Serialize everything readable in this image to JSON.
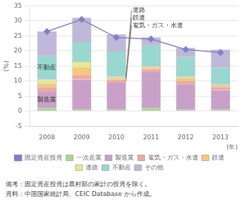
{
  "chart_data": {
    "type": "bar",
    "stacked": true,
    "categories": [
      "2008",
      "2009",
      "2010",
      "2011",
      "2012",
      "2013"
    ],
    "series": [
      {
        "name": "一次産業",
        "color": "#a8d890",
        "values": [
          1.0,
          0.5,
          0.5,
          1.0,
          0.5,
          0.5
        ]
      },
      {
        "name": "製造業",
        "color": "#c8a0c8",
        "values": [
          5.5,
          10.0,
          9.0,
          12.0,
          8.5,
          6.5
        ]
      },
      {
        "name": "電気・ガス・水道",
        "color": "#f0a8a0",
        "values": [
          1.5,
          1.5,
          1.0,
          1.0,
          1.0,
          1.0
        ]
      },
      {
        "name": "鉄道",
        "color": "#f5c87a",
        "values": [
          1.0,
          2.5,
          0.5,
          0.5,
          1.0,
          0.5
        ]
      },
      {
        "name": "道路",
        "color": "#e8e890",
        "values": [
          1.5,
          2.0,
          0.5,
          0.5,
          0.5,
          0.5
        ]
      },
      {
        "name": "不動産",
        "color": "#98d8d0",
        "values": [
          8.0,
          6.5,
          8.5,
          7.0,
          6.5,
          5.5
        ]
      },
      {
        "name": "その他",
        "color": "#c0b8d8",
        "values": [
          8.0,
          8.0,
          5.5,
          2.5,
          3.0,
          6.0
        ]
      },
      {
        "name": "固定資産投資",
        "type": "line",
        "color": "#8080c8",
        "marker": "diamond",
        "values": [
          26.5,
          30.5,
          24.5,
          24.0,
          20.5,
          19.5
        ]
      }
    ],
    "ylim": [
      -5,
      35
    ],
    "yticks": [
      -5,
      0,
      5,
      10,
      15,
      20,
      25,
      30,
      35
    ],
    "ylabel": "(%)",
    "xlabel": "(年)",
    "grid": "y",
    "legend": "bottom",
    "annotations": [
      {
        "text": "道路",
        "series": "道路",
        "category": "2010"
      },
      {
        "text": "鉄道",
        "series": "鉄道",
        "category": "2010"
      },
      {
        "text": "電気・ガス・水道",
        "series": "電気・ガス・水道",
        "category": "2010"
      },
      {
        "text": "不動産",
        "series": "不動産",
        "category": "2008"
      },
      {
        "text": "製造業",
        "series": "製造業",
        "category": "2008"
      }
    ],
    "notes": [
      "備考：固定資産投資は農村部の家計の投資を除く。",
      "資料：中国国家統計局、CEIC Database から作成。"
    ]
  }
}
